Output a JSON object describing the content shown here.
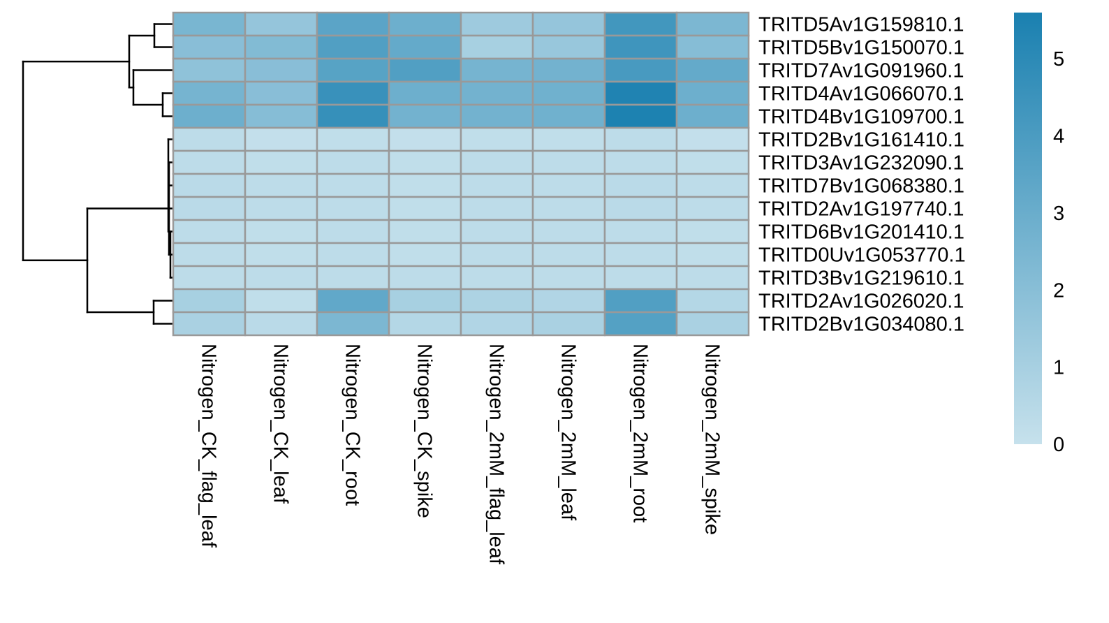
{
  "chart_data": {
    "type": "heatmap",
    "title": "",
    "xlabel": "",
    "ylabel": "",
    "columns": [
      "Nitrogen_CK_flag_leaf",
      "Nitrogen_CK_leaf",
      "Nitrogen_CK_root",
      "Nitrogen_CK_spike",
      "Nitrogen_2mM_flag_leaf",
      "Nitrogen_2mM_leaf",
      "Nitrogen_2mM_root",
      "Nitrogen_2mM_spike"
    ],
    "rows": [
      "TRITD5Av1G159810.1",
      "TRITD5Bv1G150070.1",
      "TRITD7Av1G091960.1",
      "TRITD4Av1G066070.1",
      "TRITD4Bv1G109700.1",
      "TRITD2Bv1G161410.1",
      "TRITD3Av1G232090.1",
      "TRITD7Bv1G068380.1",
      "TRITD2Av1G197740.1",
      "TRITD6Bv1G201410.1",
      "TRITD0Uv1G053770.1",
      "TRITD3Bv1G219610.1",
      "TRITD2Av1G026020.1",
      "TRITD2Bv1G034080.1"
    ],
    "values": [
      [
        2.5,
        1.6,
        3.5,
        2.9,
        1.3,
        1.6,
        4.3,
        2.4
      ],
      [
        2.0,
        2.2,
        3.8,
        3.2,
        1.0,
        1.5,
        4.4,
        2.1
      ],
      [
        1.8,
        2.0,
        3.6,
        3.8,
        2.6,
        2.7,
        4.1,
        3.2
      ],
      [
        2.6,
        2.0,
        4.6,
        2.9,
        2.7,
        2.8,
        5.4,
        2.9
      ],
      [
        2.9,
        2.1,
        4.7,
        2.7,
        2.7,
        2.8,
        5.5,
        2.9
      ],
      [
        0.3,
        0.1,
        0.2,
        0.1,
        0.2,
        0.2,
        0.3,
        0.1
      ],
      [
        0.3,
        0.2,
        0.3,
        0.2,
        0.3,
        0.3,
        0.3,
        0.2
      ],
      [
        0.4,
        0.3,
        0.3,
        0.2,
        0.3,
        0.3,
        0.4,
        0.3
      ],
      [
        0.4,
        0.3,
        0.3,
        0.2,
        0.3,
        0.3,
        0.4,
        0.3
      ],
      [
        0.3,
        0.2,
        0.3,
        0.2,
        0.3,
        0.3,
        0.3,
        0.2
      ],
      [
        0.3,
        0.2,
        0.3,
        0.2,
        0.3,
        0.3,
        0.3,
        0.2
      ],
      [
        0.3,
        0.3,
        0.3,
        0.3,
        0.3,
        0.3,
        0.3,
        0.3
      ],
      [
        1.0,
        0.2,
        3.3,
        1.0,
        0.8,
        0.7,
        3.8,
        0.6
      ],
      [
        0.9,
        0.4,
        2.4,
        0.6,
        0.7,
        0.9,
        3.7,
        0.9
      ]
    ],
    "color_scale": {
      "min": 0,
      "max": 5.6,
      "low_color": "#c6e1ec",
      "high_color": "#1a80b0",
      "ticks": [
        0,
        1,
        2,
        3,
        4,
        5
      ]
    },
    "row_dendrogram": true,
    "legend_position": "right"
  },
  "colors": {
    "cell_border": "#999999",
    "dendrogram": "#000000",
    "text": "#000000"
  }
}
